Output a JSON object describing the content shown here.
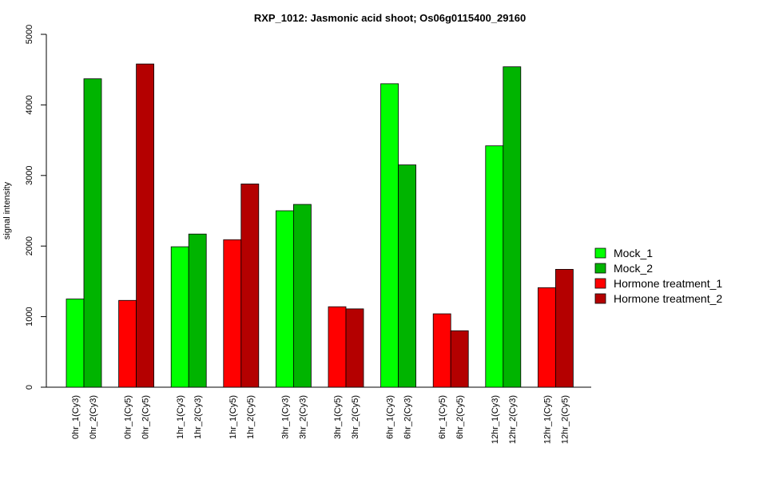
{
  "chart_data": {
    "type": "bar",
    "title": "RXP_1012: Jasmonic acid shoot; Os06g0115400_29160",
    "xlabel": "",
    "ylabel": "signal intensity",
    "ylim": [
      0,
      5000
    ],
    "yticks": [
      0,
      1000,
      2000,
      3000,
      4000,
      5000
    ],
    "grid": false,
    "legend_position": "right",
    "series": [
      {
        "name": "Mock_1",
        "color": "#00ff00"
      },
      {
        "name": "Mock_2",
        "color": "#00b400"
      },
      {
        "name": "Hormone treatment_1",
        "color": "#ff0000"
      },
      {
        "name": "Hormone treatment_2",
        "color": "#b40000"
      }
    ],
    "bars": [
      {
        "label": "0hr_1(Cy3)",
        "value": 1250,
        "series": "Mock_1"
      },
      {
        "label": "0hr_2(Cy3)",
        "value": 4370,
        "series": "Mock_2"
      },
      {
        "label": "0hr_1(Cy5)",
        "value": 1230,
        "series": "Hormone treatment_1"
      },
      {
        "label": "0hr_2(Cy5)",
        "value": 4580,
        "series": "Hormone treatment_2"
      },
      {
        "label": "1hr_1(Cy3)",
        "value": 1990,
        "series": "Mock_1"
      },
      {
        "label": "1hr_2(Cy3)",
        "value": 2170,
        "series": "Mock_2"
      },
      {
        "label": "1hr_1(Cy5)",
        "value": 2090,
        "series": "Hormone treatment_1"
      },
      {
        "label": "1hr_2(Cy5)",
        "value": 2880,
        "series": "Hormone treatment_2"
      },
      {
        "label": "3hr_1(Cy3)",
        "value": 2500,
        "series": "Mock_1"
      },
      {
        "label": "3hr_2(Cy3)",
        "value": 2590,
        "series": "Mock_2"
      },
      {
        "label": "3hr_1(Cy5)",
        "value": 1140,
        "series": "Hormone treatment_1"
      },
      {
        "label": "3hr_2(Cy5)",
        "value": 1110,
        "series": "Hormone treatment_2"
      },
      {
        "label": "6hr_1(Cy3)",
        "value": 4300,
        "series": "Mock_1"
      },
      {
        "label": "6hr_2(Cy3)",
        "value": 3150,
        "series": "Mock_2"
      },
      {
        "label": "6hr_1(Cy5)",
        "value": 1040,
        "series": "Hormone treatment_1"
      },
      {
        "label": "6hr_2(Cy5)",
        "value": 800,
        "series": "Hormone treatment_2"
      },
      {
        "label": "12hr_1(Cy3)",
        "value": 3420,
        "series": "Mock_1"
      },
      {
        "label": "12hr_2(Cy3)",
        "value": 4540,
        "series": "Mock_2"
      },
      {
        "label": "12hr_1(Cy5)",
        "value": 1410,
        "series": "Hormone treatment_1"
      },
      {
        "label": "12hr_2(Cy5)",
        "value": 1670,
        "series": "Hormone treatment_2"
      }
    ]
  }
}
